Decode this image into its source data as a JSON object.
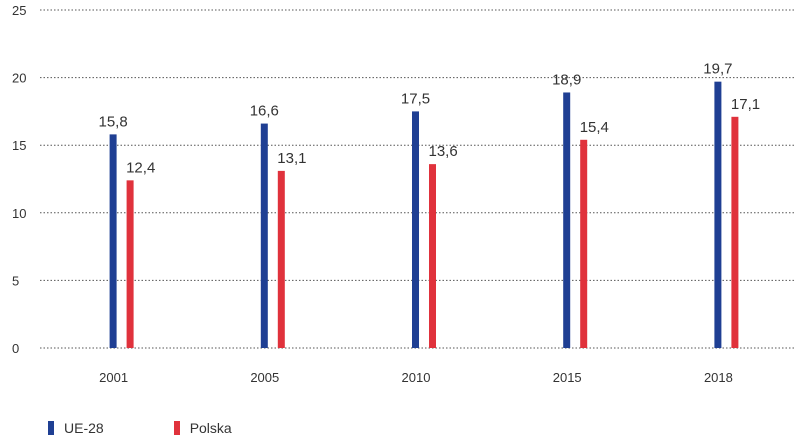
{
  "chart_data": {
    "type": "bar",
    "categories": [
      "2001",
      "2005",
      "2010",
      "2015",
      "2018"
    ],
    "series": [
      {
        "name": "UE-28",
        "values": [
          15.8,
          16.6,
          17.5,
          18.9,
          19.7
        ],
        "labels": [
          "15,8",
          "16,6",
          "17,5",
          "18,9",
          "19,7"
        ],
        "color": "#1f3f93"
      },
      {
        "name": "Polska",
        "values": [
          12.4,
          13.1,
          13.6,
          15.4,
          17.1
        ],
        "labels": [
          "12,4",
          "13,1",
          "13,6",
          "15,4",
          "17,1"
        ],
        "color": "#e0323c"
      }
    ],
    "yticks": [
      "0",
      "5",
      "10",
      "15",
      "20",
      "25"
    ],
    "ylim": [
      0,
      25
    ],
    "grid": true,
    "grid_style": "dotted",
    "legend_position": "bottom-left",
    "title": "",
    "xlabel": "",
    "ylabel": ""
  }
}
